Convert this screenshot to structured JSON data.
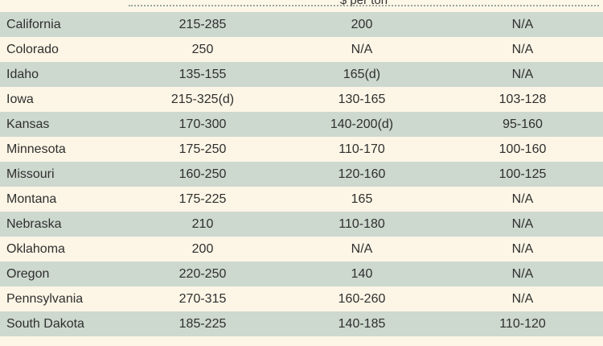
{
  "header": {
    "unit": "$ per ton"
  },
  "table": {
    "rows": [
      [
        "California",
        "215-285",
        "200",
        "N/A"
      ],
      [
        "Colorado",
        "250",
        "N/A",
        "N/A"
      ],
      [
        "Idaho",
        "135-155",
        "165(d)",
        "N/A"
      ],
      [
        "Iowa",
        "215-325(d)",
        "130-165",
        "103-128"
      ],
      [
        "Kansas",
        "170-300",
        "140-200(d)",
        "95-160"
      ],
      [
        "Minnesota",
        "175-250",
        "110-170",
        "100-160"
      ],
      [
        "Missouri",
        "160-250",
        "120-160",
        "100-125"
      ],
      [
        "Montana",
        "175-225",
        "165",
        "N/A"
      ],
      [
        "Nebraska",
        "210",
        "110-180",
        "N/A"
      ],
      [
        "Oklahoma",
        "200",
        "N/A",
        "N/A"
      ],
      [
        "Oregon",
        "220-250",
        "140",
        "N/A"
      ],
      [
        "Pennsylvania",
        "270-315",
        "160-260",
        "N/A"
      ],
      [
        "South Dakota",
        "185-225",
        "140-185",
        "110-120"
      ]
    ]
  }
}
